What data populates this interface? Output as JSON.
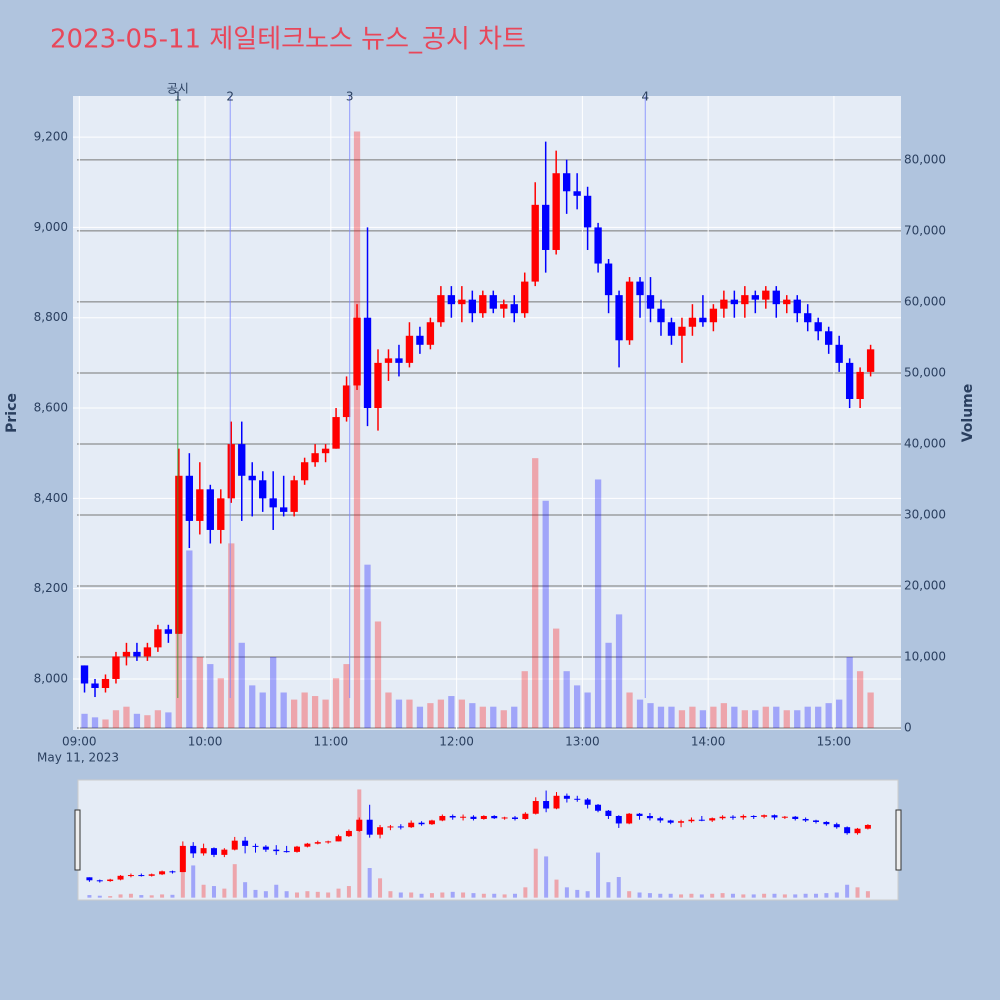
{
  "chart_data": {
    "type": "candlestick",
    "title": "2023-05-11 제일테크노스 뉴스_공시 차트",
    "y_label": "Price",
    "y2_label": "Volume",
    "x_sublabel": "May 11, 2023",
    "increasing_color": "#ff0000",
    "decreasing_color": "#0000ff",
    "x": [
      "09:00",
      "09:05",
      "09:10",
      "09:15",
      "09:20",
      "09:25",
      "09:30",
      "09:35",
      "09:40",
      "09:45",
      "09:50",
      "09:55",
      "10:00",
      "10:05",
      "10:10",
      "10:15",
      "10:20",
      "10:25",
      "10:30",
      "10:35",
      "10:40",
      "10:45",
      "10:50",
      "10:55",
      "11:00",
      "11:05",
      "11:10",
      "11:15",
      "11:20",
      "11:25",
      "11:30",
      "11:35",
      "11:40",
      "11:45",
      "11:50",
      "11:55",
      "12:00",
      "12:05",
      "12:10",
      "12:15",
      "12:20",
      "12:25",
      "12:30",
      "12:35",
      "12:40",
      "12:45",
      "12:50",
      "12:55",
      "13:00",
      "13:05",
      "13:10",
      "13:15",
      "13:20",
      "13:25",
      "13:30",
      "13:35",
      "13:40",
      "13:45",
      "13:50",
      "13:55",
      "14:00",
      "14:05",
      "14:10",
      "14:15",
      "14:20",
      "14:25",
      "14:30",
      "14:35",
      "14:40",
      "14:45",
      "14:50",
      "14:55",
      "15:00",
      "15:05",
      "15:10",
      "15:15"
    ],
    "open": [
      8030,
      7990,
      7980,
      8000,
      8050,
      8060,
      8050,
      8070,
      8110,
      8100,
      8450,
      8350,
      8420,
      8330,
      8400,
      8520,
      8450,
      8440,
      8400,
      8380,
      8370,
      8440,
      8480,
      8500,
      8510,
      8580,
      8650,
      8800,
      8600,
      8700,
      8710,
      8700,
      8760,
      8740,
      8790,
      8850,
      8830,
      8840,
      8810,
      8850,
      8820,
      8830,
      8810,
      8880,
      9050,
      8950,
      9120,
      9080,
      9070,
      9000,
      8920,
      8850,
      8750,
      8880,
      8850,
      8820,
      8790,
      8760,
      8780,
      8800,
      8790,
      8820,
      8840,
      8830,
      8850,
      8840,
      8860,
      8830,
      8840,
      8810,
      8790,
      8770,
      8740,
      8700,
      8620,
      8680
    ],
    "high": [
      8030,
      8000,
      8010,
      8060,
      8080,
      8080,
      8080,
      8120,
      8120,
      8510,
      8500,
      8480,
      8430,
      8420,
      8570,
      8570,
      8480,
      8460,
      8460,
      8450,
      8450,
      8490,
      8520,
      8520,
      8600,
      8670,
      8830,
      9000,
      8730,
      8730,
      8740,
      8790,
      8780,
      8800,
      8870,
      8870,
      8870,
      8860,
      8860,
      8860,
      8840,
      8850,
      8900,
      9100,
      9190,
      9170,
      9150,
      9120,
      9090,
      9010,
      8930,
      8860,
      8890,
      8890,
      8890,
      8840,
      8800,
      8800,
      8830,
      8850,
      8830,
      8860,
      8860,
      8870,
      8860,
      8870,
      8870,
      8850,
      8850,
      8830,
      8800,
      8780,
      8760,
      8710,
      8690,
      8740
    ],
    "low": [
      7970,
      7960,
      7970,
      7990,
      8030,
      8040,
      8040,
      8060,
      8080,
      8100,
      8290,
      8320,
      8300,
      8300,
      8390,
      8350,
      8360,
      8370,
      8330,
      8360,
      8360,
      8430,
      8470,
      8480,
      8510,
      8570,
      8640,
      8560,
      8550,
      8660,
      8670,
      8690,
      8720,
      8730,
      8780,
      8800,
      8790,
      8790,
      8800,
      8810,
      8800,
      8790,
      8800,
      8870,
      8900,
      8940,
      9030,
      9040,
      8950,
      8900,
      8810,
      8690,
      8740,
      8800,
      8790,
      8760,
      8740,
      8700,
      8760,
      8780,
      8770,
      8800,
      8800,
      8800,
      8810,
      8820,
      8800,
      8810,
      8790,
      8770,
      8750,
      8720,
      8680,
      8600,
      8600,
      8670
    ],
    "close": [
      7990,
      7980,
      8000,
      8050,
      8060,
      8050,
      8070,
      8110,
      8100,
      8450,
      8350,
      8420,
      8330,
      8400,
      8520,
      8450,
      8440,
      8400,
      8380,
      8370,
      8440,
      8480,
      8500,
      8510,
      8580,
      8650,
      8800,
      8600,
      8700,
      8710,
      8700,
      8760,
      8740,
      8790,
      8850,
      8830,
      8840,
      8810,
      8850,
      8820,
      8830,
      8810,
      8880,
      9050,
      8950,
      9120,
      9080,
      9070,
      9000,
      8920,
      8850,
      8750,
      8880,
      8850,
      8820,
      8790,
      8760,
      8780,
      8800,
      8790,
      8820,
      8840,
      8830,
      8850,
      8840,
      8860,
      8830,
      8840,
      8810,
      8790,
      8770,
      8740,
      8700,
      8620,
      8680,
      8730
    ],
    "volume": [
      2000,
      1500,
      1200,
      2500,
      3000,
      2000,
      1800,
      2500,
      2200,
      30000,
      25000,
      10000,
      9000,
      7000,
      26000,
      12000,
      6000,
      5000,
      10000,
      5000,
      4000,
      5000,
      4500,
      4000,
      7000,
      9000,
      84000,
      23000,
      15000,
      5000,
      4000,
      4000,
      3000,
      3500,
      4000,
      4500,
      4000,
      3500,
      3000,
      3000,
      2500,
      3000,
      8000,
      38000,
      32000,
      14000,
      8000,
      6000,
      5000,
      35000,
      12000,
      16000,
      5000,
      4000,
      3500,
      3000,
      3000,
      2500,
      3000,
      2500,
      3000,
      3500,
      3000,
      2500,
      2500,
      3000,
      3000,
      2500,
      2500,
      3000,
      3000,
      3500,
      4000,
      10000,
      8000,
      5000
    ],
    "event_title": "공시",
    "events": [
      {
        "x": "09:47",
        "label": "1",
        "color": "#2ca02c"
      },
      {
        "x": "10:12",
        "label": "2",
        "color": "#7b86ff"
      },
      {
        "x": "11:09",
        "label": "3",
        "color": "#7b86ff"
      },
      {
        "x": "13:30",
        "label": "4",
        "color": "#7b86ff"
      }
    ],
    "xlim": [
      "08:57",
      "15:32"
    ],
    "xticks": [
      "09:00",
      "10:00",
      "11:00",
      "12:00",
      "13:00",
      "14:00",
      "15:00"
    ],
    "ylim": [
      7887,
      9291
    ],
    "yticks": [
      {
        "value": 8000,
        "label": "8,000"
      },
      {
        "value": 8200,
        "label": "8,200"
      },
      {
        "value": 8400,
        "label": "8,400"
      },
      {
        "value": 8600,
        "label": "8,600"
      },
      {
        "value": 8800,
        "label": "8,800"
      },
      {
        "value": 9000,
        "label": "9,000"
      },
      {
        "value": 9200,
        "label": "9,200"
      }
    ],
    "y2lim": [
      -282,
      89000
    ],
    "y2ticks": [
      0,
      {
        "value": 10000,
        "label": "10,000"
      },
      {
        "value": 20000,
        "label": "20,000"
      },
      {
        "value": 30000,
        "label": "30,000"
      },
      {
        "value": 40000,
        "label": "40,000"
      },
      {
        "value": 50000,
        "label": "50,000"
      },
      {
        "value": 60000,
        "label": "60,000"
      },
      {
        "value": 70000,
        "label": "70,000"
      },
      {
        "value": 80000,
        "label": "80,000"
      }
    ]
  }
}
